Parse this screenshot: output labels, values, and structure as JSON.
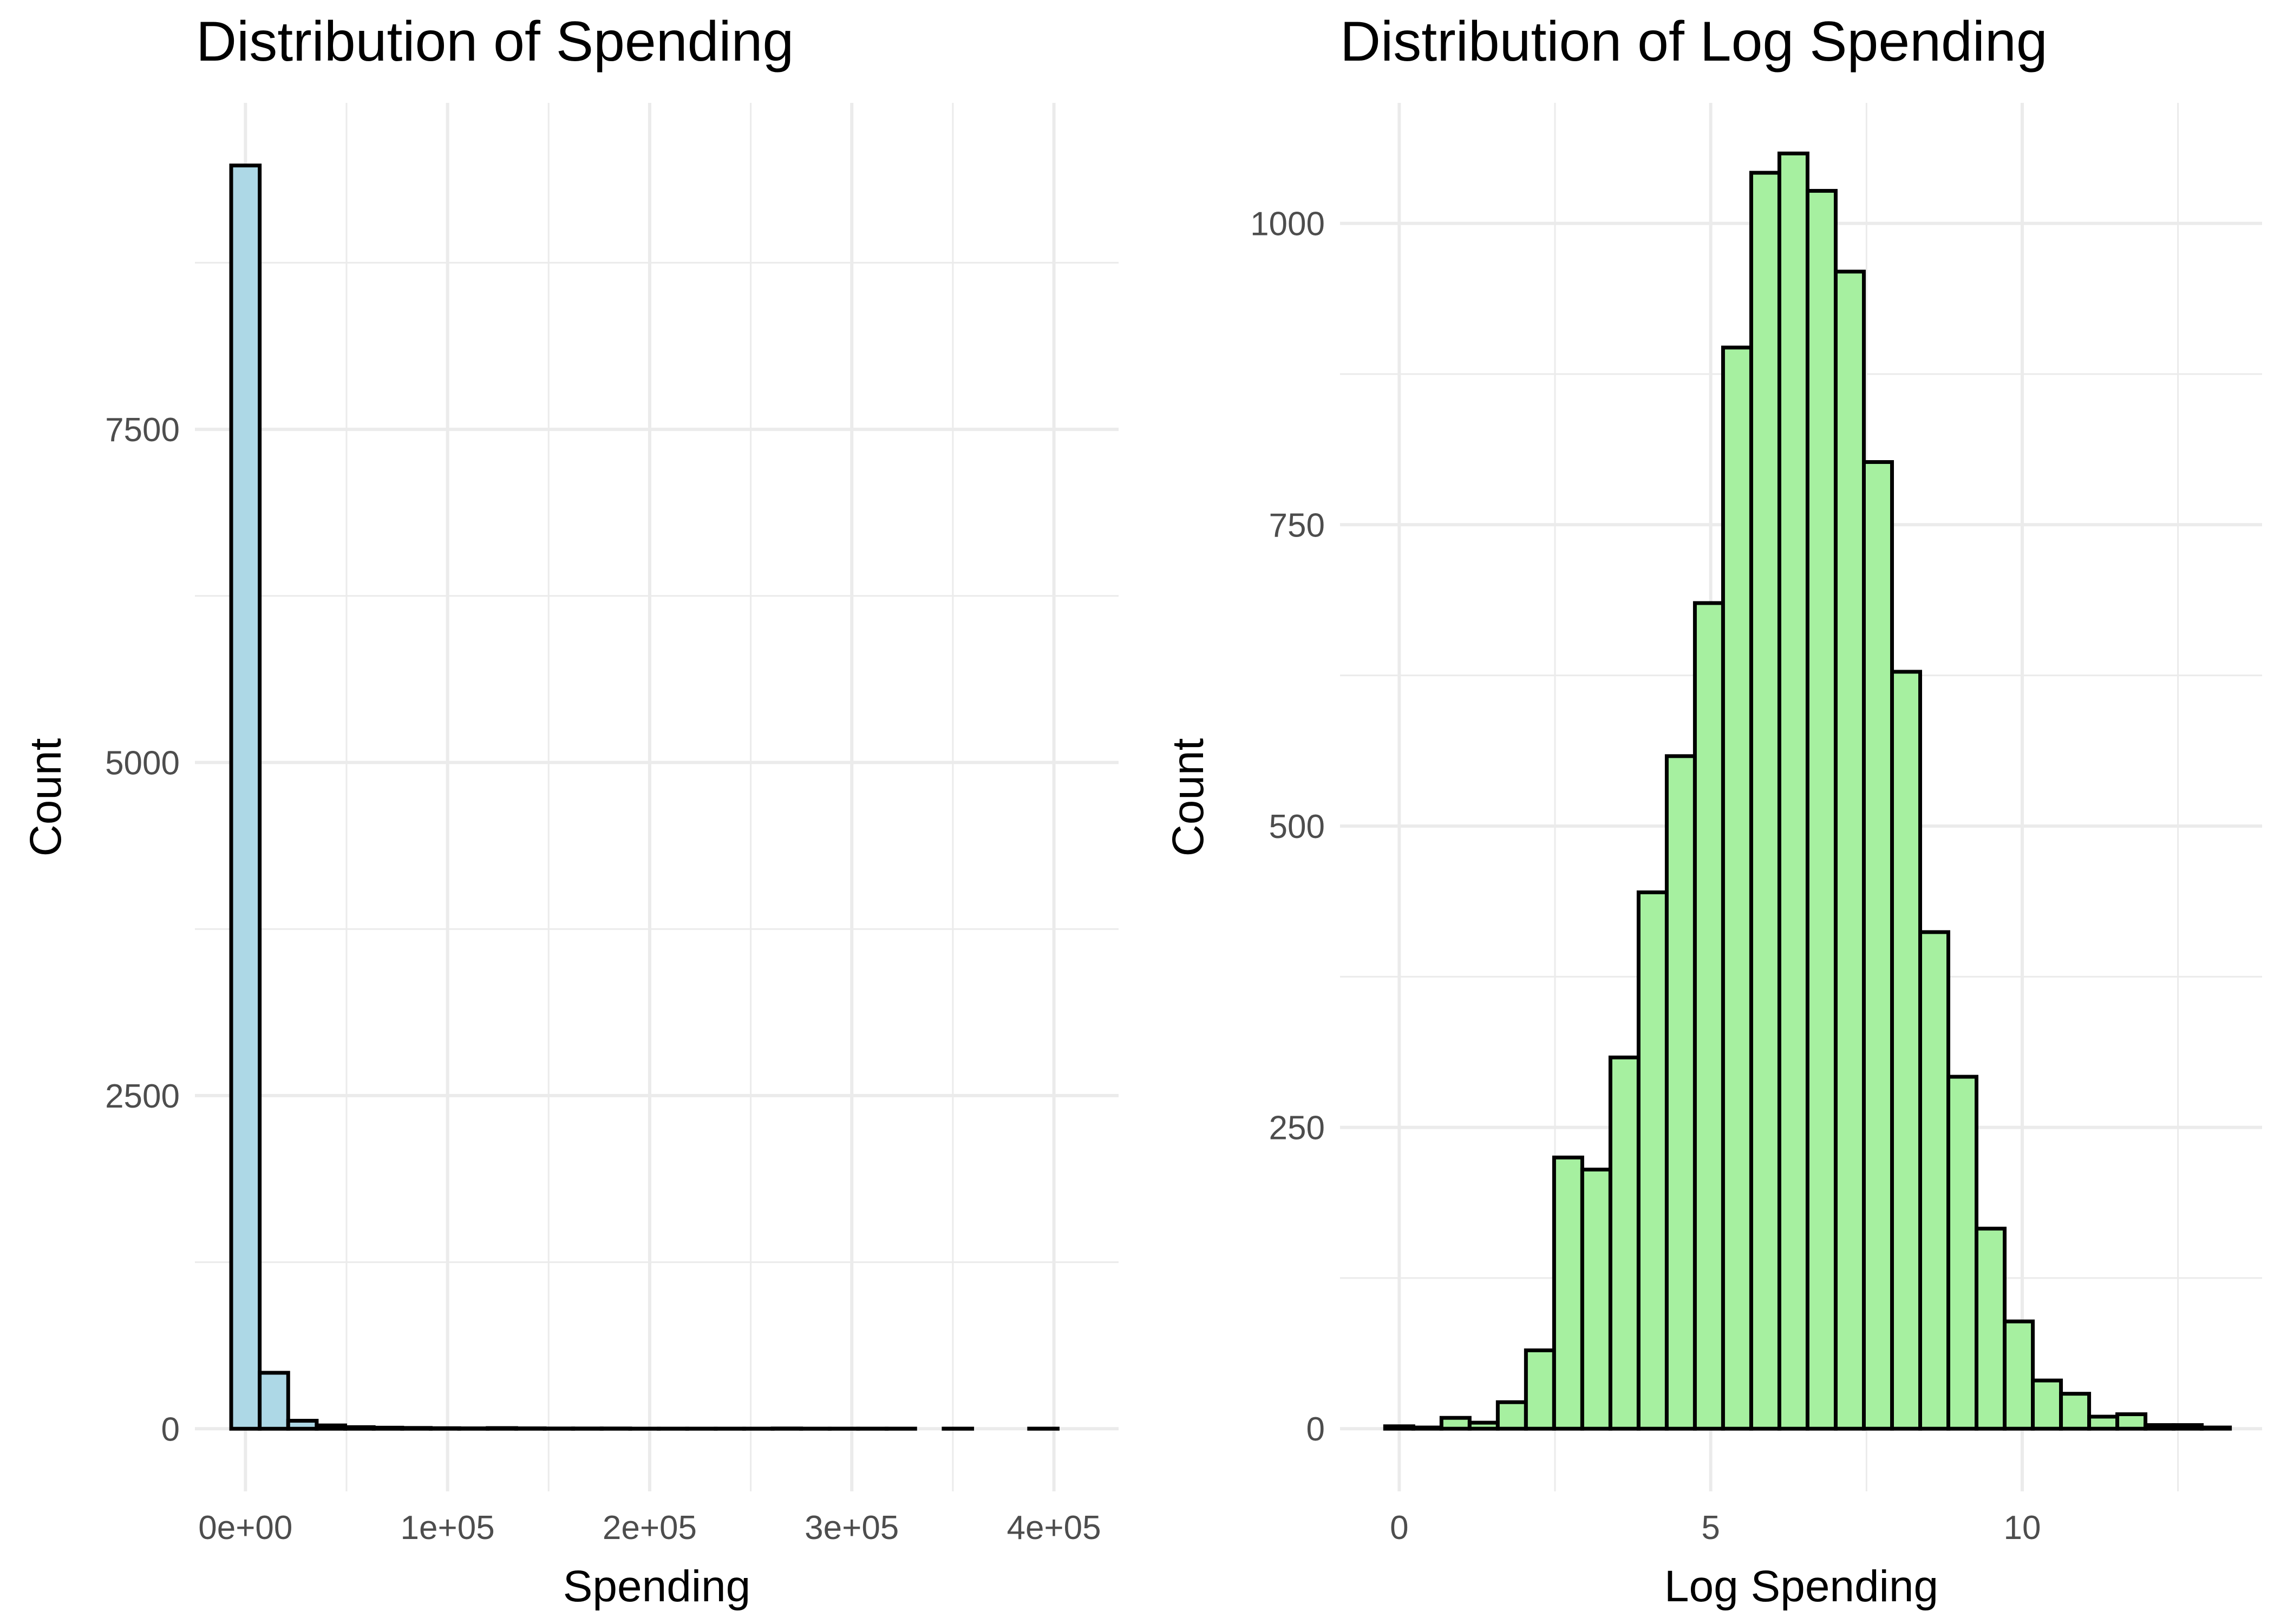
{
  "chart_data": [
    {
      "type": "bar",
      "title": "Distribution of Spending",
      "xlabel": "Spending",
      "ylabel": "Count",
      "fill_color": "#add8e6",
      "outline_color": "#000000",
      "xlim": [
        -25000,
        432000
      ],
      "ylim": [
        -470,
        9950
      ],
      "x_ticks": [
        0,
        100000,
        200000,
        300000,
        400000
      ],
      "x_tick_labels": [
        "0e+00",
        "1e+05",
        "2e+05",
        "3e+05",
        "4e+05"
      ],
      "y_ticks": [
        0,
        2500,
        5000,
        7500
      ],
      "y_tick_labels": [
        "0",
        "2500",
        "5000",
        "7500"
      ],
      "grid": true,
      "bin_width": 14100,
      "bin_centers": [
        0,
        14100,
        28200,
        42300,
        56400,
        70500,
        84600,
        98700,
        112800,
        126900,
        141000,
        155100,
        169200,
        183300,
        197400,
        211500,
        225600,
        239700,
        253800,
        267900,
        282000,
        296100,
        310200,
        324300,
        338400,
        352500,
        366600,
        380700,
        394800
      ],
      "values": [
        9480,
        420,
        60,
        25,
        12,
        8,
        6,
        4,
        3,
        5,
        3,
        2,
        2,
        2,
        1,
        1,
        1,
        1,
        1,
        2,
        1,
        1,
        1,
        1,
        0,
        1,
        0,
        0,
        1
      ]
    },
    {
      "type": "bar",
      "title": "Distribution of Log Spending",
      "xlabel": "Log Spending",
      "ylabel": "Count",
      "fill_color": "#a6f0a0",
      "outline_color": "#000000",
      "xlim": [
        -0.95,
        13.85
      ],
      "ylim": [
        -52,
        1100
      ],
      "x_ticks": [
        0,
        5,
        10
      ],
      "x_tick_labels": [
        "0",
        "5",
        "10"
      ],
      "y_ticks": [
        0,
        250,
        500,
        750,
        1000
      ],
      "y_tick_labels": [
        "0",
        "250",
        "500",
        "750",
        "1000"
      ],
      "grid": true,
      "bin_width": 0.452,
      "bin_centers": [
        -0.0,
        0.452,
        0.904,
        1.356,
        1.808,
        2.26,
        2.712,
        3.164,
        3.616,
        4.068,
        4.52,
        4.972,
        5.424,
        5.876,
        6.328,
        6.78,
        7.232,
        7.684,
        8.136,
        8.588,
        9.04,
        9.492,
        9.944,
        10.396,
        10.848,
        11.3,
        11.752,
        12.204,
        12.656,
        13.108
      ],
      "values": [
        2,
        1,
        9,
        5,
        22,
        65,
        225,
        215,
        308,
        445,
        558,
        685,
        897,
        1042,
        1058,
        1027,
        960,
        802,
        628,
        412,
        292,
        166,
        89,
        40,
        29,
        10,
        12,
        3,
        3,
        1
      ]
    }
  ]
}
